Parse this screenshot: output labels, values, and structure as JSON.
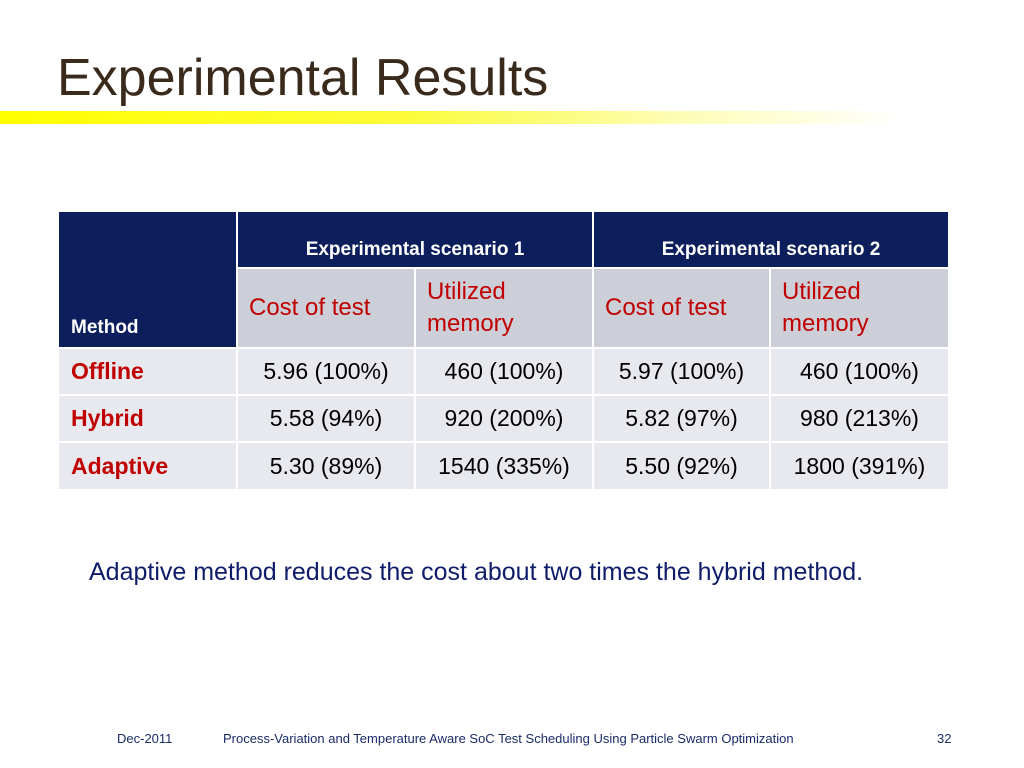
{
  "slide": {
    "title": "Experimental Results"
  },
  "table": {
    "method_header": "Method",
    "scenarios": [
      "Experimental scenario 1",
      "Experimental scenario 2"
    ],
    "subheaders": [
      "Cost of test",
      "Utilized memory",
      "Cost of test",
      "Utilized memory"
    ],
    "rows": [
      {
        "method": "Offline",
        "values": [
          "5.96 (100%)",
          "460 (100%)",
          "5.97 (100%)",
          "460 (100%)"
        ]
      },
      {
        "method": "Hybrid",
        "values": [
          "5.58 (94%)",
          "920 (200%)",
          "5.82 (97%)",
          "980 (213%)"
        ]
      },
      {
        "method": "Adaptive",
        "values": [
          "5.30 (89%)",
          "1540 (335%)",
          "5.50 (92%)",
          "1800 (391%)"
        ]
      }
    ]
  },
  "summary": "Adaptive method reduces the cost about two times the hybrid method.",
  "footer": {
    "date": "Dec-2011",
    "title": "Process-Variation and Temperature Aware SoC Test Scheduling Using Particle Swarm Optimization",
    "page": "32"
  },
  "colors": {
    "title_text": "#3a2a1c",
    "underline_accent": "#ffff00",
    "header_dark": "#0c1f5c",
    "subheader_bg": "#ccced8",
    "row_bg": "#e8e9ee",
    "red_text": "#c00000",
    "body_blue": "#0f1c6a"
  }
}
